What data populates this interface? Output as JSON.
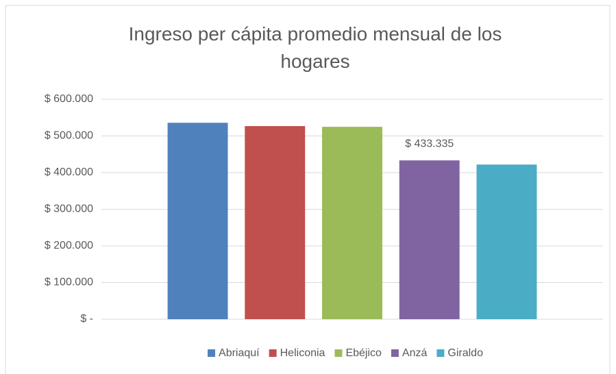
{
  "chart_data": {
    "type": "bar",
    "title": "Ingreso per cápita promedio mensual de los hogares",
    "categories": [
      null
    ],
    "series": [
      {
        "name": "Abriaquí",
        "color": "#4f81bd",
        "values": [
          536000
        ]
      },
      {
        "name": "Heliconia",
        "color": "#c0504d",
        "values": [
          527000
        ]
      },
      {
        "name": "Ebéjico",
        "color": "#9bbb59",
        "values": [
          525000
        ]
      },
      {
        "name": "Anzá",
        "color": "#8064a2",
        "values": [
          433335
        ],
        "value_labels": [
          "$ 433.335"
        ]
      },
      {
        "name": "Giraldo",
        "color": "#4bacc6",
        "values": [
          422000
        ]
      }
    ],
    "ylim": [
      0,
      600000
    ],
    "yticks": [
      {
        "value": 0,
        "label": "$ -"
      },
      {
        "value": 100000,
        "label": "$ 100.000"
      },
      {
        "value": 200000,
        "label": "$ 200.000"
      },
      {
        "value": 300000,
        "label": "$ 300.000"
      },
      {
        "value": 400000,
        "label": "$ 400.000"
      },
      {
        "value": 500000,
        "label": "$ 500.000"
      },
      {
        "value": 600000,
        "label": "$ 600.000"
      }
    ],
    "grid": true,
    "legend": "bottom"
  }
}
